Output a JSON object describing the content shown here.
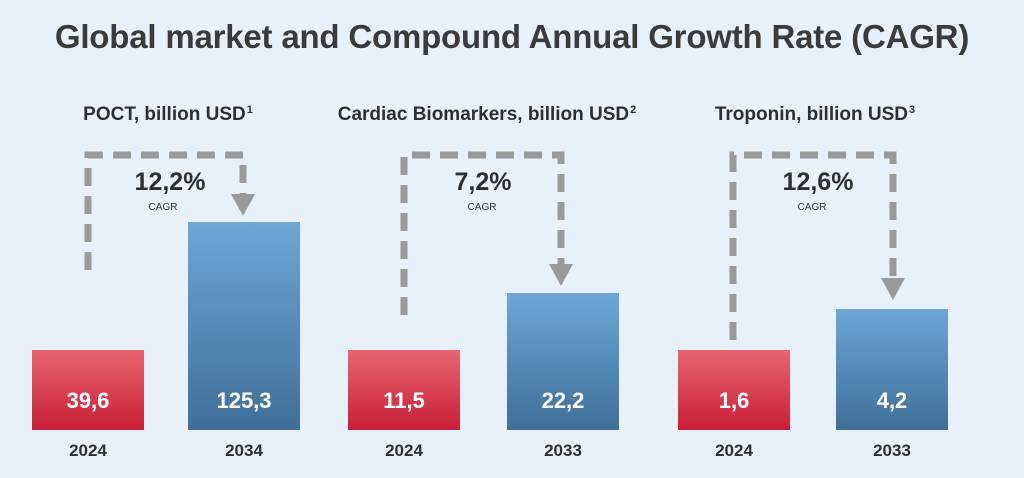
{
  "title": "Global market and Compound Annual Growth Rate (CAGR)",
  "colors": {
    "start_bar": "#c81f37",
    "end_bar": "#3f6f98",
    "arrow": "#9a9a9a",
    "background": "#e8f1fa"
  },
  "chart_data": [
    {
      "type": "bar",
      "title": "POCT, billion USD",
      "footnote": "1",
      "categories": [
        "2024",
        "2034"
      ],
      "values": [
        39.6,
        125.3
      ],
      "value_labels": [
        "39,6",
        "125,3"
      ],
      "cagr": "12,2%",
      "cagr_label": "CAGR"
    },
    {
      "type": "bar",
      "title": "Cardiac Biomarkers, billion USD",
      "footnote": "2",
      "categories": [
        "2024",
        "2033"
      ],
      "values": [
        11.5,
        22.2
      ],
      "value_labels": [
        "11,5",
        "22,2"
      ],
      "cagr": "7,2%",
      "cagr_label": "CAGR"
    },
    {
      "type": "bar",
      "title": "Troponin, billion USD",
      "footnote": "3",
      "categories": [
        "2024",
        "2033"
      ],
      "values": [
        1.6,
        4.2
      ],
      "value_labels": [
        "1,6",
        "4,2"
      ],
      "cagr": "12,6%",
      "cagr_label": "CAGR"
    }
  ]
}
